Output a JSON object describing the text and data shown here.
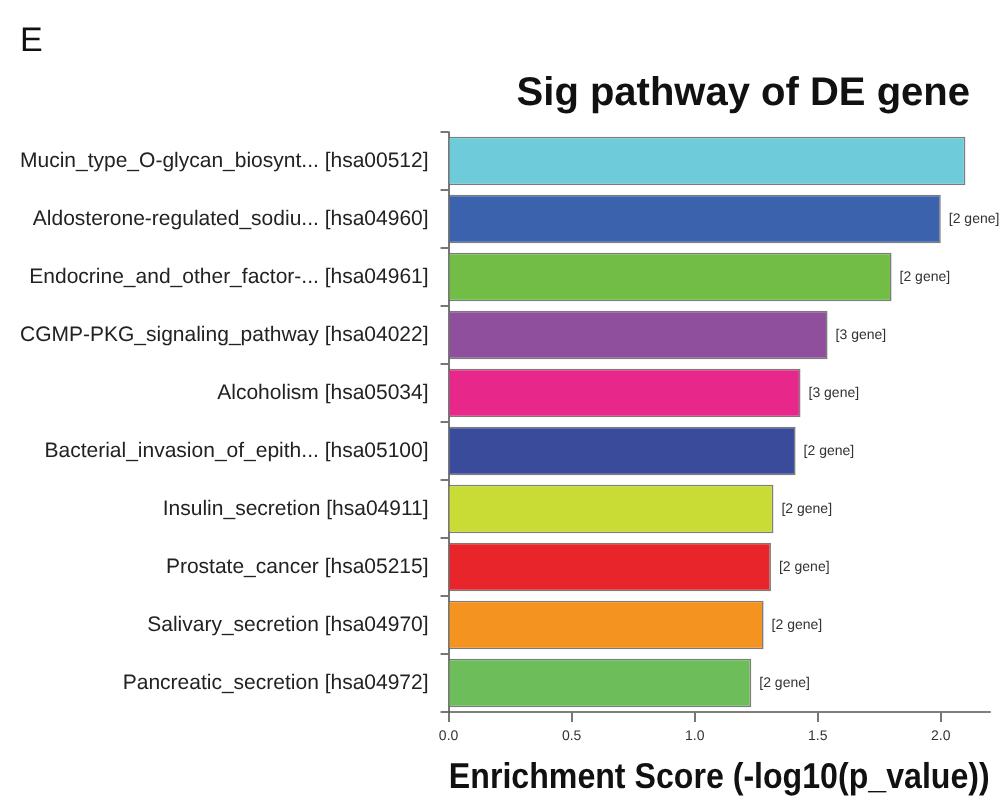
{
  "chart_data": {
    "type": "bar",
    "orientation": "horizontal",
    "title": "Sig pathway of DE gene",
    "xlabel": "Enrichment Score (-log10(p_value))",
    "categories": [
      "Mucin_type_O-glycan_biosynt... [hsa00512]",
      "Aldosterone-regulated_sodiu... [hsa04960]",
      "Endocrine_and_other_factor-... [hsa04961]",
      "CGMP-PKG_signaling_pathway [hsa04022]",
      "Alcoholism [hsa05034]",
      "Bacterial_invasion_of_epith... [hsa05100]",
      "Insulin_secretion [hsa04911]",
      "Prostate_cancer [hsa05215]",
      "Salivary_secretion [hsa04970]",
      "Pancreatic_secretion [hsa04972]"
    ],
    "values": [
      2.1,
      2.0,
      1.8,
      1.54,
      1.43,
      1.41,
      1.32,
      1.31,
      1.28,
      1.23
    ],
    "colors": [
      "#6ecbd9",
      "#3a62ad",
      "#72bd45",
      "#8f4f9c",
      "#e8278a",
      "#3a4b9c",
      "#c9dc35",
      "#e8252a",
      "#f4931f",
      "#6dbd5a"
    ],
    "annotations": [
      "E",
      {
        "text": "[2 gene]",
        "x": 2.0,
        "y": "Aldosterone-regulated_sodiu... [hsa04960]"
      },
      {
        "text": "[2 gene]",
        "x": 1.8,
        "y": "Endocrine_and_other_factor-... [hsa04961]"
      },
      {
        "text": "[3 gene]",
        "x": 1.54,
        "y": "CGMP-PKG_signaling_pathway [hsa04022]"
      },
      {
        "text": "[3 gene]",
        "x": 1.43,
        "y": "Alcoholism [hsa05034]"
      },
      {
        "text": "[2 gene]",
        "x": 1.41,
        "y": "Bacterial_invasion_of_epith... [hsa05100]"
      },
      {
        "text": "[2 gene]",
        "x": 1.32,
        "y": "Insulin_secretion [hsa04911]"
      },
      {
        "text": "[2 gene]",
        "x": 1.31,
        "y": "Prostate_cancer [hsa05215]"
      },
      {
        "text": "[2 gene]",
        "x": 1.28,
        "y": "Salivary_secretion [hsa04970]"
      },
      {
        "text": "[2 gene]",
        "x": 1.23,
        "y": "Pancreatic_secretion [hsa04972]"
      }
    ],
    "xlim": [
      0,
      2.2
    ],
    "xticks": [
      {
        "value": 0,
        "label": "0.0"
      },
      0.5,
      {
        "value": 1,
        "label": "1.0"
      },
      1.5,
      {
        "value": 2,
        "label": "2.0"
      }
    ]
  }
}
